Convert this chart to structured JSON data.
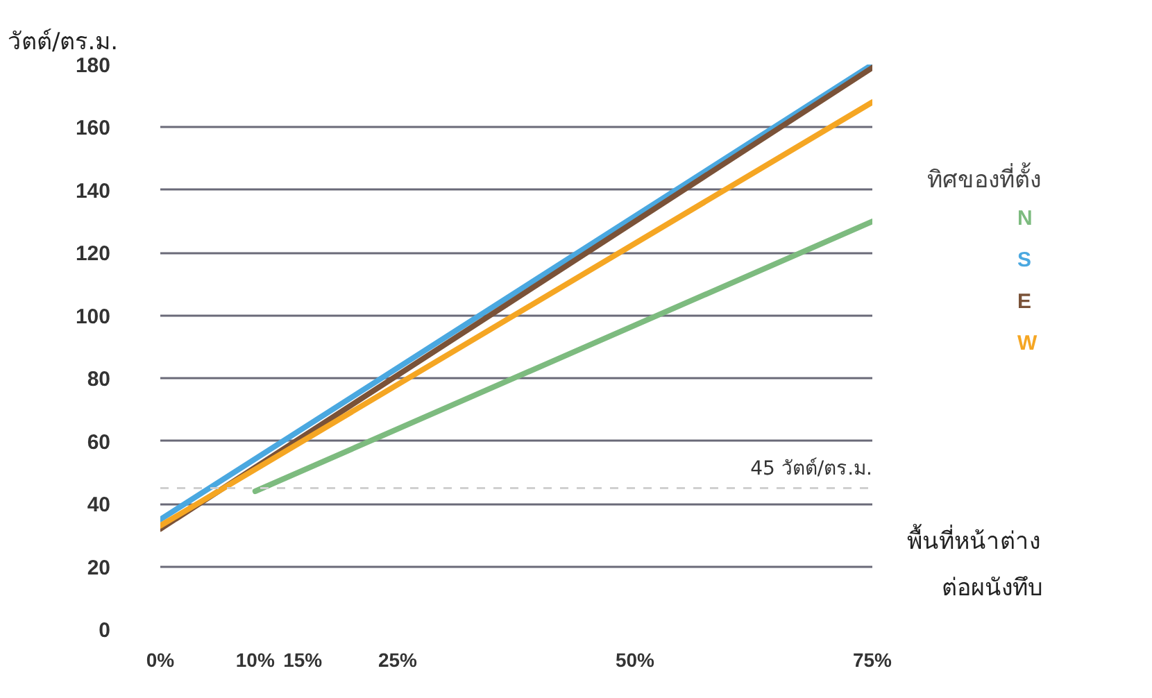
{
  "chart_data": {
    "type": "line",
    "ylabel": "วัตต์/ตร.ม.",
    "xlabel": "พื้นที่หน้าต่าง\nต่อผนังทึบ",
    "legend_title": "ทิศของที่ตั้ง",
    "series": [
      {
        "name": "N",
        "color": "#7dbb7f",
        "x": [
          10,
          75
        ],
        "values": [
          44,
          130
        ]
      },
      {
        "name": "S",
        "color": "#4aa8e0",
        "x": [
          0,
          75
        ],
        "values": [
          35,
          180
        ]
      },
      {
        "name": "E",
        "color": "#7a5238",
        "x": [
          0,
          75
        ],
        "values": [
          32,
          179
        ]
      },
      {
        "name": "W",
        "color": "#f5a623",
        "x": [
          0,
          75
        ],
        "values": [
          33,
          168
        ]
      }
    ],
    "xlim": [
      0,
      75
    ],
    "ylim": [
      0,
      180
    ],
    "xticks": [
      {
        "value": 0,
        "label": "0%"
      },
      {
        "value": 10,
        "label": "10%"
      },
      {
        "value": 15,
        "label": "15%"
      },
      {
        "value": 25,
        "label": "25%"
      },
      {
        "value": 50,
        "label": "50%"
      },
      {
        "value": 75,
        "label": "75%"
      }
    ],
    "yticks": [
      0,
      20,
      40,
      60,
      80,
      100,
      120,
      140,
      160,
      180
    ],
    "ref_lines": [
      {
        "axis": "y",
        "value": 45,
        "label": "45 วัตต์/ตร.ม.",
        "color": "#d0d0d0",
        "line_style": "dashed"
      }
    ],
    "grid": true,
    "legend": "right",
    "marker": "none",
    "line_style": "solid"
  }
}
